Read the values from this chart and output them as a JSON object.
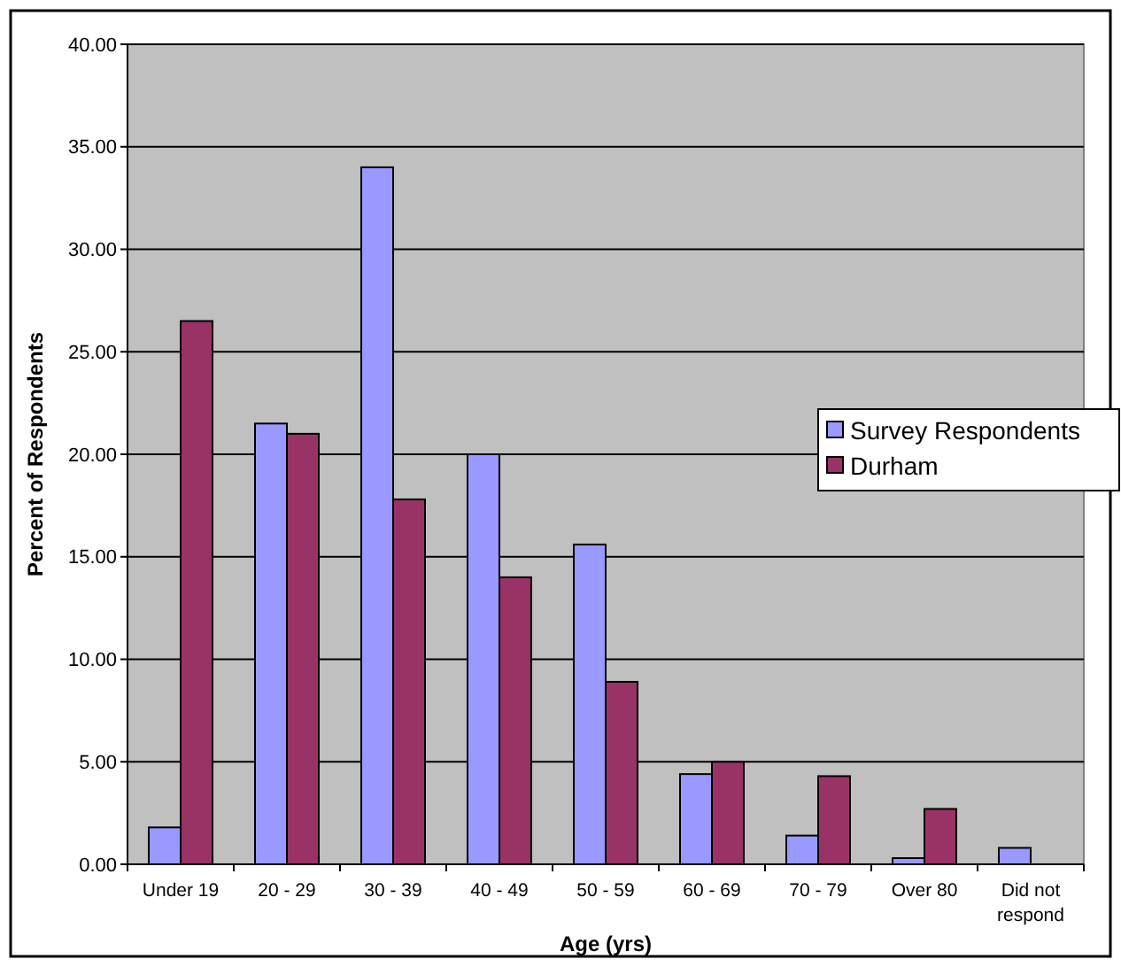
{
  "chart_data": {
    "type": "bar",
    "xlabel": "Age (yrs)",
    "ylabel": "Percent of Respondents",
    "categories": [
      "Under 19",
      "20 - 29",
      "30 - 39",
      "40 - 49",
      "50 - 59",
      "60 - 69",
      "70 - 79",
      "Over 80",
      "Did not respond"
    ],
    "series": [
      {
        "name": "Survey Respondents",
        "color": "#9999ff",
        "values": [
          1.8,
          21.5,
          34.0,
          20.0,
          15.6,
          4.4,
          1.4,
          0.3,
          0.8
        ]
      },
      {
        "name": "Durham",
        "color": "#993366",
        "values": [
          26.5,
          21.0,
          17.8,
          14.0,
          8.9,
          5.0,
          4.3,
          2.7,
          null
        ]
      }
    ],
    "ylim": [
      0,
      40
    ],
    "yticks": [
      {
        "value": 0,
        "label": "0.00"
      },
      {
        "value": 5,
        "label": "5.00"
      },
      {
        "value": 10,
        "label": "10.00"
      },
      {
        "value": 15,
        "label": "15.00"
      },
      {
        "value": 20,
        "label": "20.00"
      },
      {
        "value": 25,
        "label": "25.00"
      },
      {
        "value": 30,
        "label": "30.00"
      },
      {
        "value": 35,
        "label": "35.00"
      },
      {
        "value": 40,
        "label": "40.00"
      }
    ],
    "grid": "y",
    "legend": "right"
  }
}
